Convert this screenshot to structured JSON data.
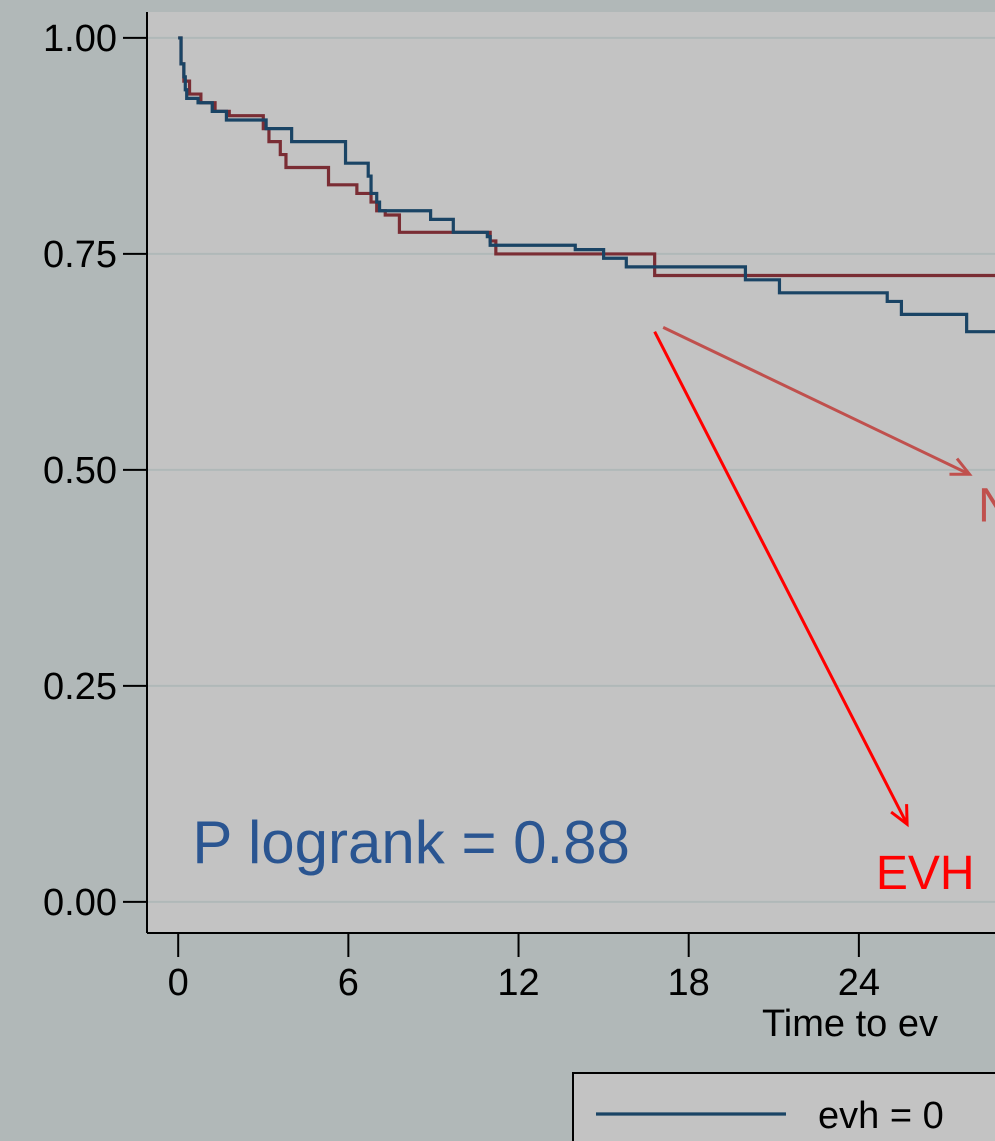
{
  "chart_data": {
    "type": "line",
    "step": true,
    "title": "",
    "xlabel": "Time to ev",
    "ylabel": "",
    "xlim": [
      -1.1,
      28.8
    ],
    "ylim": [
      -0.036,
      1.03
    ],
    "x_ticks": [
      0,
      6,
      12,
      18,
      24
    ],
    "x_tick_labels": [
      "0",
      "6",
      "12",
      "18",
      "24"
    ],
    "y_ticks": [
      0,
      0.25,
      0.5,
      0.75,
      1.0
    ],
    "y_tick_labels": [
      "0.00",
      "0.25",
      "0.50",
      "0.75",
      "1.00"
    ],
    "grid": true,
    "series": [
      {
        "name": "evh = 0",
        "color": "#1a4465",
        "points": [
          [
            0,
            1.0
          ],
          [
            0.1,
            0.97
          ],
          [
            0.2,
            0.955
          ],
          [
            0.25,
            0.94
          ],
          [
            0.3,
            0.93
          ],
          [
            0.7,
            0.925
          ],
          [
            1.2,
            0.915
          ],
          [
            1.7,
            0.905
          ],
          [
            3.1,
            0.895
          ],
          [
            4.0,
            0.88
          ],
          [
            5.9,
            0.855
          ],
          [
            6.7,
            0.84
          ],
          [
            6.8,
            0.82
          ],
          [
            7.0,
            0.81
          ],
          [
            7.1,
            0.8
          ],
          [
            8.9,
            0.79
          ],
          [
            9.7,
            0.775
          ],
          [
            10.9,
            0.77
          ],
          [
            11.0,
            0.76
          ],
          [
            14.0,
            0.755
          ],
          [
            15.0,
            0.745
          ],
          [
            15.8,
            0.735
          ],
          [
            20.0,
            0.72
          ],
          [
            21.2,
            0.705
          ],
          [
            25.0,
            0.695
          ],
          [
            25.5,
            0.68
          ],
          [
            27.8,
            0.66
          ]
        ],
        "x_end": 28.8
      },
      {
        "name": "",
        "color": "#7a2d34",
        "points": [
          [
            0,
            1.0
          ],
          [
            0.1,
            0.97
          ],
          [
            0.2,
            0.95
          ],
          [
            0.4,
            0.935
          ],
          [
            0.8,
            0.925
          ],
          [
            1.3,
            0.915
          ],
          [
            1.8,
            0.91
          ],
          [
            3.0,
            0.895
          ],
          [
            3.2,
            0.88
          ],
          [
            3.6,
            0.865
          ],
          [
            3.8,
            0.85
          ],
          [
            5.3,
            0.83
          ],
          [
            6.3,
            0.82
          ],
          [
            6.8,
            0.81
          ],
          [
            7.0,
            0.8
          ],
          [
            7.3,
            0.795
          ],
          [
            7.8,
            0.775
          ],
          [
            11.0,
            0.765
          ],
          [
            11.2,
            0.75
          ],
          [
            16.8,
            0.725
          ]
        ],
        "x_end": 28.8
      }
    ],
    "annotations": [
      {
        "text": "P logrank = 0.88",
        "color": "#2a5591",
        "x": 0.5,
        "y": 0.045
      },
      {
        "text": "EVH",
        "color": "#ff0000",
        "x": 24.6,
        "y": 0.015
      },
      {
        "text": "N",
        "color": "#c0504d",
        "x": 28.2,
        "y": 0.44
      }
    ],
    "arrows": [
      {
        "color": "#ff0000",
        "from": [
          16.8,
          0.66
        ],
        "to": [
          25.7,
          0.09
        ]
      },
      {
        "color": "#c0504d",
        "from": [
          17.1,
          0.665
        ],
        "to": [
          27.9,
          0.495
        ]
      }
    ],
    "legend": {
      "position": "bottom",
      "entries": [
        {
          "label": "evh = 0",
          "color": "#1a4465"
        }
      ]
    }
  }
}
